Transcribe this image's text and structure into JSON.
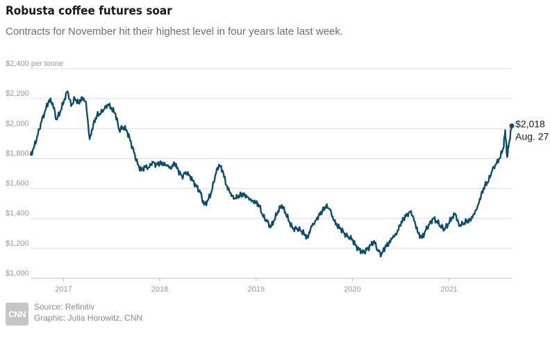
{
  "header": {
    "title": "Robusta coffee futures soar",
    "subtitle": "Contracts for November hit their highest level in four years late last week."
  },
  "footer": {
    "logo_text": "CNN",
    "source": "Source: Refinitiv",
    "graphic": "Graphic: Julia Horowitz, CNN"
  },
  "colors": {
    "line": "#0e4c68",
    "grid": "#dcdcdc",
    "axis": "#bdbdbd"
  },
  "chart_data": {
    "type": "line",
    "title": "Robusta coffee futures soar",
    "subtitle": "Contracts for November hit their highest level in four years late last week.",
    "y_unit_label": "per tonne",
    "ylim": [
      1000,
      2400
    ],
    "y_ticks": [
      1000,
      1200,
      1400,
      1600,
      1800,
      2000,
      2200,
      2400
    ],
    "y_tick_labels": [
      "$1,000",
      "$1,200",
      "$1,400",
      "$1,600",
      "$1,800",
      "$2,000",
      "$2,200",
      "$2,400 per tonne"
    ],
    "xlim": [
      "2016-08-29",
      "2021-08-27"
    ],
    "x_ticks": [
      "2017-01-01",
      "2018-01-01",
      "2019-01-01",
      "2020-01-01",
      "2021-01-01"
    ],
    "x_tick_labels": [
      "2017",
      "2018",
      "2019",
      "2020",
      "2021"
    ],
    "grid": true,
    "annotation": {
      "value_label": "$2,018",
      "date_label": "Aug. 27",
      "x": "2021-08-27",
      "y": 2018
    },
    "series": [
      {
        "x": [
          "2016-08-29",
          "2016-09-12",
          "2016-09-26",
          "2016-10-10",
          "2016-10-24",
          "2016-11-07",
          "2016-11-21",
          "2016-12-05",
          "2016-12-19",
          "2017-01-02",
          "2017-01-16",
          "2017-01-30",
          "2017-02-13",
          "2017-02-27",
          "2017-03-13",
          "2017-03-27",
          "2017-04-10",
          "2017-04-24",
          "2017-05-08",
          "2017-05-22",
          "2017-06-05",
          "2017-06-19",
          "2017-07-03",
          "2017-07-17",
          "2017-07-31",
          "2017-08-14",
          "2017-08-28",
          "2017-09-11",
          "2017-09-25",
          "2017-10-09",
          "2017-10-23",
          "2017-11-06",
          "2017-11-20",
          "2017-12-04",
          "2017-12-18",
          "2018-01-01",
          "2018-01-15",
          "2018-01-29",
          "2018-02-12",
          "2018-02-26",
          "2018-03-12",
          "2018-03-26",
          "2018-04-09",
          "2018-04-23",
          "2018-05-07",
          "2018-05-21",
          "2018-06-04",
          "2018-06-18",
          "2018-07-02",
          "2018-07-16",
          "2018-07-30",
          "2018-08-13",
          "2018-08-27",
          "2018-09-10",
          "2018-09-24",
          "2018-10-08",
          "2018-10-22",
          "2018-11-05",
          "2018-11-19",
          "2018-12-03",
          "2018-12-17",
          "2019-01-01",
          "2019-01-14",
          "2019-01-28",
          "2019-02-11",
          "2019-02-25",
          "2019-03-11",
          "2019-03-25",
          "2019-04-08",
          "2019-04-22",
          "2019-05-06",
          "2019-05-20",
          "2019-06-03",
          "2019-06-17",
          "2019-07-01",
          "2019-07-15",
          "2019-07-29",
          "2019-08-12",
          "2019-08-26",
          "2019-09-09",
          "2019-09-23",
          "2019-10-07",
          "2019-10-21",
          "2019-11-04",
          "2019-11-18",
          "2019-12-02",
          "2019-12-16",
          "2020-01-01",
          "2020-01-13",
          "2020-01-27",
          "2020-02-10",
          "2020-02-24",
          "2020-03-09",
          "2020-03-23",
          "2020-04-06",
          "2020-04-20",
          "2020-05-04",
          "2020-05-18",
          "2020-06-01",
          "2020-06-15",
          "2020-06-29",
          "2020-07-13",
          "2020-07-27",
          "2020-08-10",
          "2020-08-24",
          "2020-09-07",
          "2020-09-21",
          "2020-10-05",
          "2020-10-19",
          "2020-11-02",
          "2020-11-16",
          "2020-11-30",
          "2020-12-14",
          "2020-12-28",
          "2021-01-11",
          "2021-01-25",
          "2021-02-08",
          "2021-02-22",
          "2021-03-08",
          "2021-03-22",
          "2021-04-05",
          "2021-04-19",
          "2021-05-03",
          "2021-05-17",
          "2021-05-31",
          "2021-06-14",
          "2021-06-28",
          "2021-07-12",
          "2021-07-26",
          "2021-08-02",
          "2021-08-09",
          "2021-08-16",
          "2021-08-27"
        ],
        "values": [
          1820,
          1880,
          1960,
          2050,
          2120,
          2190,
          2170,
          2060,
          2110,
          2180,
          2250,
          2150,
          2200,
          2170,
          2210,
          2180,
          1930,
          2030,
          2090,
          2100,
          2130,
          2160,
          2130,
          2100,
          1990,
          2010,
          1990,
          1920,
          1840,
          1760,
          1720,
          1750,
          1740,
          1780,
          1760,
          1770,
          1760,
          1750,
          1730,
          1770,
          1720,
          1680,
          1710,
          1690,
          1650,
          1610,
          1570,
          1490,
          1520,
          1580,
          1690,
          1760,
          1720,
          1620,
          1570,
          1530,
          1540,
          1560,
          1560,
          1540,
          1520,
          1510,
          1480,
          1410,
          1380,
          1340,
          1390,
          1450,
          1490,
          1440,
          1380,
          1330,
          1330,
          1320,
          1300,
          1270,
          1350,
          1380,
          1420,
          1450,
          1480,
          1460,
          1390,
          1350,
          1330,
          1300,
          1280,
          1260,
          1220,
          1190,
          1170,
          1190,
          1220,
          1250,
          1190,
          1160,
          1210,
          1230,
          1270,
          1290,
          1350,
          1400,
          1430,
          1450,
          1380,
          1300,
          1270,
          1320,
          1360,
          1400,
          1380,
          1350,
          1330,
          1360,
          1400,
          1430,
          1350,
          1360,
          1380,
          1390,
          1430,
          1480,
          1560,
          1620,
          1650,
          1720,
          1760,
          1800,
          1870,
          1990,
          1810,
          1900,
          2018
        ]
      }
    ]
  }
}
